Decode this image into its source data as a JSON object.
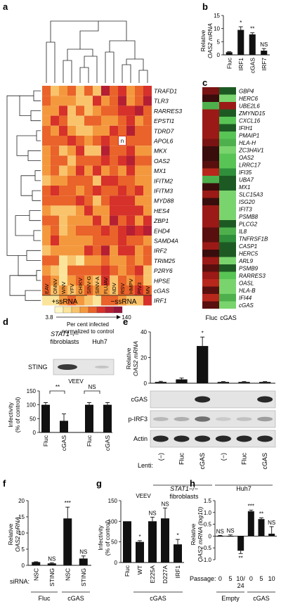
{
  "panels": {
    "a": "a",
    "b": "b",
    "c": "c",
    "d": "d",
    "e": "e",
    "f": "f",
    "g": "g",
    "h": "h"
  },
  "heatmap_a": {
    "genes": [
      "TRAFD1",
      "TLR3",
      "RARRES3",
      "EPSTI1",
      "TDRD7",
      "APOL6",
      "MKX",
      "OAS2",
      "MX1",
      "IFITM2",
      "IFITM3",
      "MYD88",
      "HES4",
      "ZBP1",
      "EHD4",
      "SAMD4A",
      "IRF2",
      "TRIM25",
      "P2RY6",
      "HPSE",
      "cGAS",
      "IRF1"
    ],
    "viruses": [
      "EAV",
      "ONNV",
      "WNV",
      "YFV",
      "CHIKV",
      "SINV-G",
      "SINV-A",
      "FLUAV",
      "NDV",
      "RSV",
      "HMPV",
      "PIV3",
      "MV"
    ],
    "missing_label": "n",
    "group_pos": "+ssRNA",
    "group_neg": "−ssRNA",
    "scale_min": "3.8",
    "scale_max": "140",
    "scale_caption_1": "Per cent infected",
    "scale_caption_2": "normalized to control",
    "scale_colors": [
      "#fdf7c8",
      "#fbe49a",
      "#f9c36c",
      "#f4983e",
      "#e9632a",
      "#d6312a",
      "#b51f33",
      "#93153a"
    ]
  },
  "heatmap_c": {
    "genes": [
      "GBP4",
      "HERC6",
      "UBE2L6",
      "ZMYND15",
      "CXCL16",
      "IFIH1",
      "PMAIP1",
      "HLA-H",
      "ZC3HAV1",
      "OAS2",
      "LRRC17",
      "IFI35",
      "UBA7",
      "MX1",
      "SLC15A3",
      "ISG20",
      "IFIT3",
      "PSMB8",
      "PLCG2",
      "IL8",
      "TNFRSF1B",
      "CASP1",
      "HERC5",
      "ARL9",
      "PSMB9",
      "RARRES3",
      "OASL",
      "HLA-B",
      "IFI44",
      "cGAS"
    ],
    "columns": [
      "Fluc",
      "cGAS"
    ]
  },
  "panel_d": {
    "blot_header_1": "STAT1−/−",
    "blot_header_2": "fibroblasts",
    "blot_header_3": "Huh7",
    "blot_label": "STING",
    "virus": "VEEV",
    "ylabel_1": "Infectivity",
    "ylabel_2": "(% of control)",
    "sig_1": "**",
    "sig_2": "NS",
    "x_labels": [
      "Fluc",
      "cGAS",
      "Fluc",
      "cGAS"
    ]
  },
  "panel_e": {
    "ylabel_1": "Relative",
    "ylabel_2": "OAS2 mRNA",
    "sig": "*",
    "blot_labels": [
      "cGAS",
      "p-IRF3",
      "Actin"
    ],
    "lenti_label": "Lenti:",
    "lanes": [
      "(−)",
      "Fluc",
      "cGAS",
      "(−)",
      "Fluc",
      "cGAS"
    ],
    "group_1a": "STAT1−/−",
    "group_1b": "fibroblasts",
    "group_2": "Huh7"
  },
  "panel_f": {
    "ylabel_1": "Relative",
    "ylabel_2": "OAS2 mRNA",
    "sirna_label": "siRNA:",
    "x_labels": [
      "NSC",
      "STING",
      "NSC",
      "STING"
    ],
    "groups": [
      "Fluc",
      "cGAS"
    ],
    "sigs": [
      "",
      "NS",
      "***",
      "NS"
    ]
  },
  "panel_g": {
    "virus": "VEEV",
    "ylabel_1": "Infectivity",
    "ylabel_2": "(% of control)",
    "x_labels": [
      "Fluc",
      "WT",
      "E225A",
      "D227A",
      "IRF1"
    ],
    "group": "cGAS",
    "sigs": [
      "",
      "*",
      "NS",
      "NS",
      "*"
    ]
  },
  "panel_h": {
    "ylabel_1": "Relative",
    "ylabel_2": "OAS2 mRNA (log10)",
    "passage_label": "Passage:",
    "x_labels": [
      "0",
      "5",
      "10/",
      "0",
      "5",
      "10"
    ],
    "x_label_extra": "24",
    "groups": [
      "Empty",
      "cGAS"
    ],
    "sigs": [
      "NS",
      "NS",
      "**",
      "***",
      "**",
      "NS"
    ]
  },
  "chart_data": [
    {
      "type": "bar",
      "panel": "b",
      "categories": [
        "Fluc",
        "IRF1",
        "cGAS",
        "IRF7"
      ],
      "values": [
        1,
        9.5,
        7.8,
        1.6
      ],
      "errors": [
        0.2,
        1.2,
        0.6,
        0.8
      ],
      "annotations": [
        "",
        "*",
        "**",
        "NS"
      ],
      "ylabel": "Relative OAS2 mRNA",
      "ylim": [
        0,
        15
      ],
      "yticks": [
        0,
        5,
        10,
        15
      ]
    },
    {
      "type": "bar",
      "panel": "d",
      "categories": [
        "Fluc",
        "cGAS",
        "Fluc",
        "cGAS"
      ],
      "values": [
        100,
        42,
        100,
        100
      ],
      "errors": [
        8,
        25,
        8,
        8
      ],
      "ylim": [
        0,
        150
      ],
      "yticks": [
        0,
        50,
        100,
        150
      ],
      "ylabel": "Infectivity (% of control)"
    },
    {
      "type": "bar",
      "panel": "e",
      "categories": [
        "(−)",
        "Fluc",
        "cGAS",
        "(−)",
        "Fluc",
        "cGAS"
      ],
      "values": [
        1,
        3,
        29,
        1,
        1,
        1
      ],
      "errors": [
        0.5,
        1,
        7,
        0.3,
        0.3,
        0.3
      ],
      "ylim": [
        0,
        40
      ],
      "yticks": [
        0,
        20,
        40
      ],
      "ylabel": "Relative OAS2 mRNA"
    },
    {
      "type": "bar",
      "panel": "f",
      "categories": [
        "NSC",
        "STING",
        "NSC",
        "STING"
      ],
      "values": [
        1,
        0.6,
        14.5,
        2.1
      ],
      "errors": [
        0.1,
        0.2,
        3.5,
        0.8
      ],
      "ylim": [
        0,
        20
      ],
      "yticks": [
        0,
        5,
        10,
        15,
        20
      ],
      "ylabel": "Relative OAS2 mRNA"
    },
    {
      "type": "bar",
      "panel": "g",
      "categories": [
        "Fluc",
        "WT",
        "E225A",
        "D227A",
        "IRF1"
      ],
      "values": [
        100,
        50,
        100,
        107,
        44
      ],
      "errors": [
        0,
        3,
        10,
        25,
        12
      ],
      "ylim": [
        0,
        150
      ],
      "yticks": [
        0,
        50,
        100,
        150
      ],
      "ylabel": "Infectivity (% of control)"
    },
    {
      "type": "bar",
      "panel": "h",
      "categories": [
        "0",
        "5",
        "10/24",
        "0",
        "5",
        "10"
      ],
      "values": [
        0,
        0,
        -0.62,
        1.05,
        0.72,
        0.1
      ],
      "errors": [
        0.03,
        0.05,
        0.12,
        0.05,
        0.05,
        0.3
      ],
      "ylim": [
        -1.0,
        1.5
      ],
      "yticks": [
        -1.0,
        -0.5,
        0,
        0.5,
        1.0,
        1.5
      ],
      "ylabel": "Relative OAS2 mRNA (log10)"
    }
  ]
}
